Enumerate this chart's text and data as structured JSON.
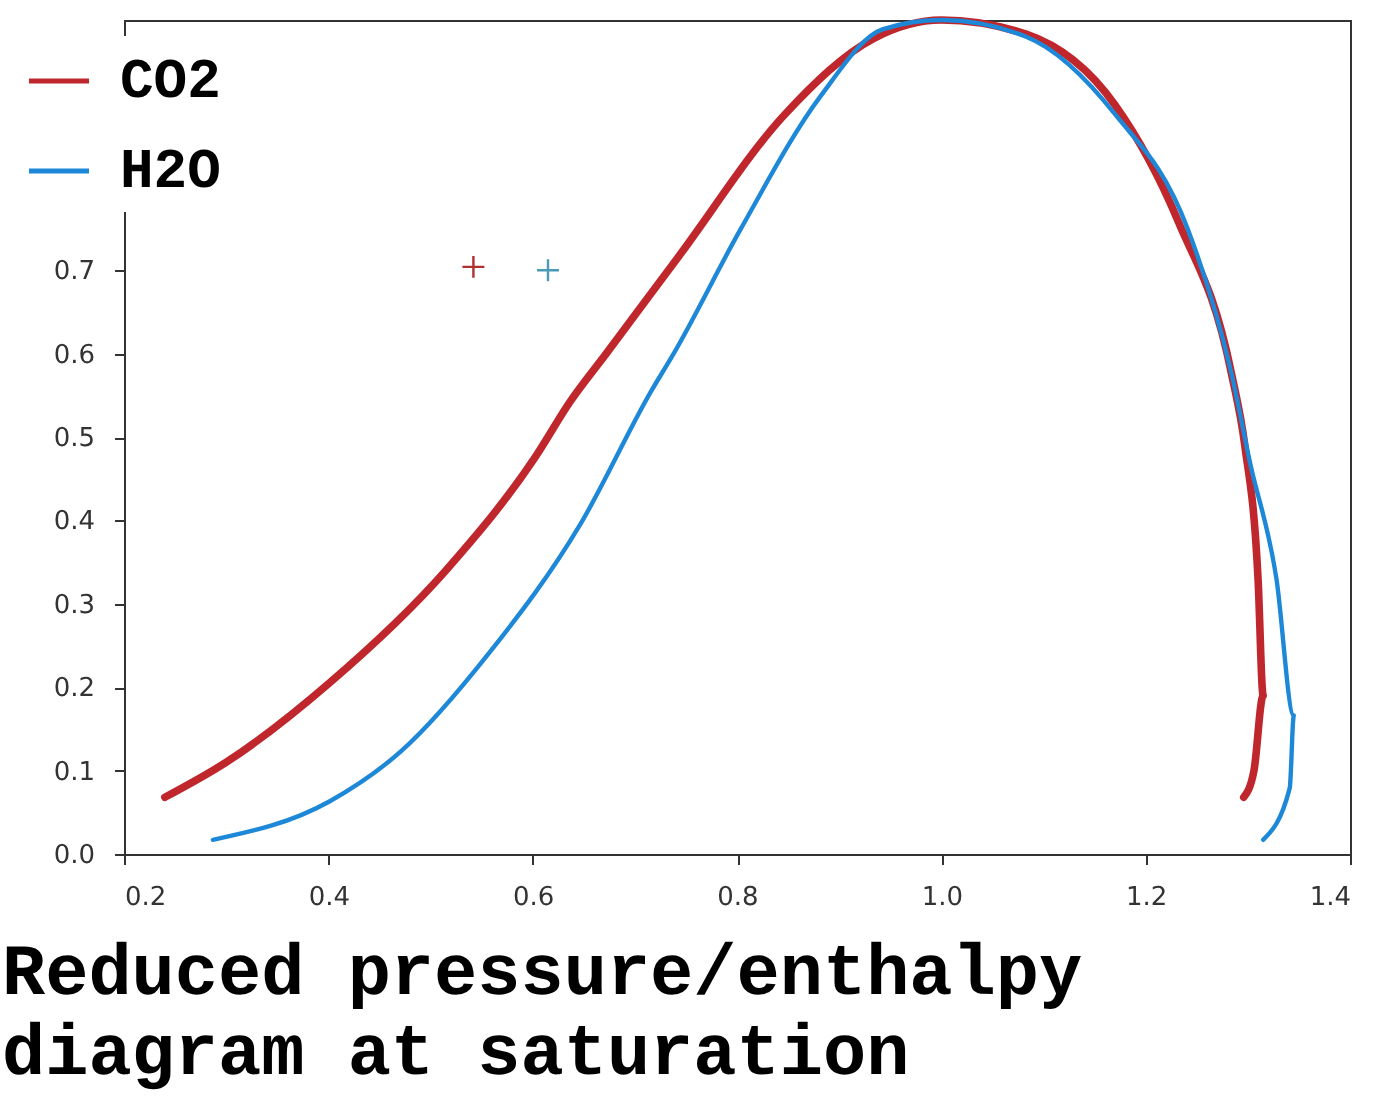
{
  "chart_data": {
    "type": "line",
    "title": "Reduced pressure/enthalpy diagram at saturation",
    "legend": "top left",
    "xlim": [
      0.2,
      1.4
    ],
    "ylim": [
      0,
      1
    ],
    "xticks": [
      0.2,
      0.4,
      0.6,
      0.8,
      {
        "value": 1,
        "label": "1.0"
      },
      1.2,
      1.4
    ],
    "yticks": [
      {
        "value": 0,
        "label": "0.0"
      },
      0.1,
      0.2,
      0.3,
      0.4,
      0.5,
      0.6,
      0.7
    ],
    "series": [
      {
        "name": "CO2",
        "color": "#c0272d",
        "x": [
          0.24,
          0.3,
          0.4,
          0.515,
          0.602,
          0.637,
          0.672,
          0.742,
          0.847,
          0.934,
          1.0,
          1.083,
          1.17,
          1.232,
          1.284,
          1.297,
          1.31,
          1.315,
          1.306,
          1.296
        ],
        "values": [
          0.068,
          0.11,
          0.204,
          0.34,
          0.475,
          0.543,
          0.6,
          0.715,
          0.887,
          0.978,
          1.0,
          0.983,
          0.898,
          0.758,
          0.576,
          0.49,
          0.33,
          0.19,
          0.1,
          0.068
        ]
      },
      {
        "name": "H2O",
        "color": "#1e88d8",
        "x": [
          0.287,
          0.401,
          0.471,
          0.558,
          0.646,
          0.716,
          0.738,
          0.803,
          0.882,
          0.943,
          1.0,
          1.083,
          1.17,
          1.241,
          1.284,
          1.302,
          1.328,
          1.345,
          1.341,
          1.315
        ],
        "values": [
          0.017,
          0.063,
          0.123,
          0.242,
          0.394,
          0.555,
          0.6,
          0.748,
          0.909,
          0.989,
          1.0,
          0.98,
          0.887,
          0.75,
          0.576,
          0.47,
          0.33,
          0.166,
          0.079,
          0.017
        ]
      },
      {
        "type": "scatter",
        "color": "#b03030",
        "marker": "cross",
        "x": [
          0.542
        ],
        "values": [
          0.704
        ]
      },
      {
        "type": "scatter",
        "color": "#4a9ab8",
        "marker": "cross",
        "x": [
          0.615
        ],
        "values": [
          0.7
        ]
      }
    ]
  }
}
